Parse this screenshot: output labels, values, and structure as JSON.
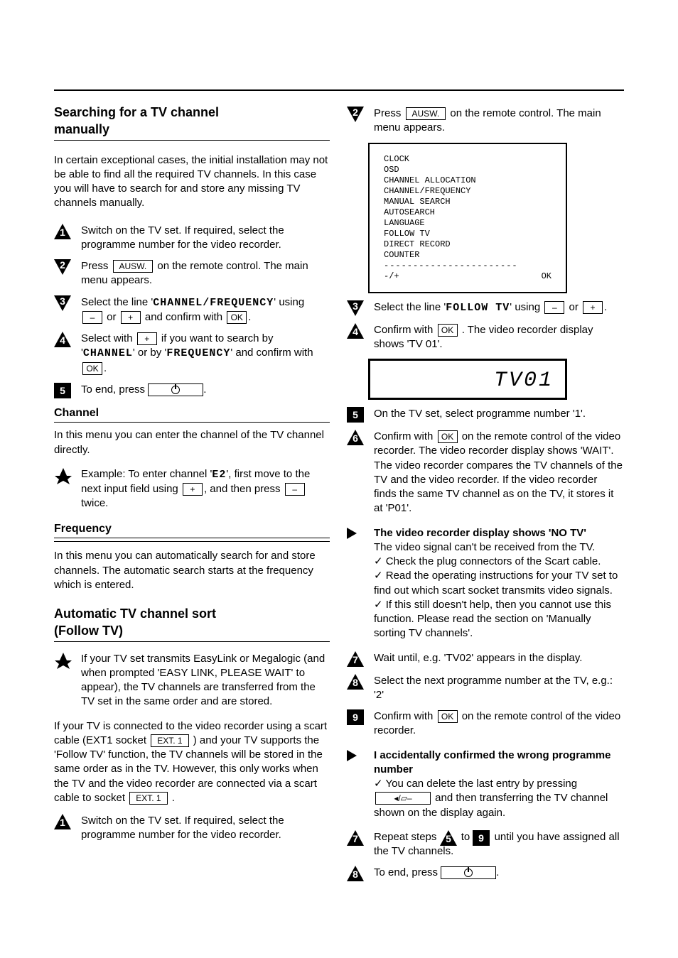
{
  "left": {
    "h1_a": "Searching for a TV channel",
    "h1_b": "manually",
    "p1a": "In certain exceptional cases, the initial installation may not be able to find all the required TV channels. In this case you will have to search for and store any missing TV channels manually.",
    "s1": "Switch on the TV set. If required, select the programme number for the video recorder.",
    "s2": "Press",
    "s2b": "on the remote control. The main menu appears.",
    "s3a": "Select the line '",
    "s3chan": "CHANNEL/FREQUENCY",
    "s3b": "' using",
    "s3c": "or",
    "s3d": "and confirm with",
    "s4a": "Select with",
    "s4b": "if you want to search by '",
    "s4chan": "CHANNEL",
    "s4c": "' or by '",
    "s4freq": "FREQUENCY",
    "s4d": "' and confirm with",
    "s5a": "To end, press",
    "h2": "Channel",
    "p2": "In this menu you can enter the channel of the TV channel directly.",
    "ex1": "Example: To enter channel '",
    "ex2": "E2",
    "ex3": "', first move to the next input field using",
    "ex4": ", and then press",
    "ex5": "twice.",
    "h3": "Frequency",
    "p3": "In this menu you can automatically search for and store channels. The automatic search starts at the frequency which is entered.",
    "h4": "Automatic TV channel sort",
    "h5": "(Follow TV)",
    "tip1": "If your TV set transmits EasyLink or Megalogic (and when prompted 'EASY LINK, PLEASE WAIT' to appear), the TV channels are transferred from the TV set in the same order and are stored.",
    "p4a": "If your TV is connected to the video recorder using a scart cable (EXT1 socket",
    "p4b": ") and your TV supports the 'Follow TV' function, the TV channels will be stored in the same order as in the TV. However, this only works when the TV and the video recorder are connected via a scart cable to socket",
    "p4c": ".",
    "r1": "Switch on the TV set. If required, select the programme number for the video recorder."
  },
  "right": {
    "r2a": "Press",
    "r2b": "on the remote control. The main menu appears.",
    "menu": [
      "CLOCK",
      "OSD",
      "CHANNEL ALLOCATION",
      "CHANNEL/FREQUENCY",
      "MANUAL SEARCH",
      "AUTOSEARCH",
      "LANGUAGE",
      "FOLLOW TV",
      "DIRECT RECORD",
      "COUNTER"
    ],
    "menufoot_l": "-/+",
    "menufoot_r": "OK",
    "r3a": "Select the line '",
    "r3b": "FOLLOW TV",
    "r3c": "' using",
    "r3d": "or",
    "r4a": "Confirm with",
    "r4b": ". The video recorder display shows 'TV 01'.",
    "lcd": "TV01",
    "r5": "On the TV set, select programme number '1'.",
    "r6a": "Confirm with",
    "r6b": "on the remote control of the video recorder. The video recorder display shows 'WAIT'. The video recorder compares the TV channels of the TV and the video recorder. If the video recorder finds the same TV channel as on the TV, it stores it at 'P01'.",
    "x1a": "The video recorder display shows 'NO TV'",
    "x1b": "The video signal can't be received from the TV.",
    "x1c": "Check the plug connectors of the Scart cable.",
    "x1d": "Read the operating instructions for your TV set to find out which scart socket transmits video signals.",
    "x1e": "If this still doesn't help, then you cannot use this function. Please read the section on 'Manually sorting TV channels'.",
    "r7": "Wait until, e.g. 'TV02' appears in the display.",
    "r8": "Select the next programme number at the TV, e.g.: '2'",
    "r9a": "Confirm with",
    "r9b": "on the remote control of the video recorder.",
    "x2a": "I accidentally confirmed the wrong programme number",
    "x2b": "You can delete the last entry by pressing",
    "x2c": "and then transferring the TV channel shown on the display again.",
    "r10a": "Repeat steps",
    "r10b": "to",
    "r10c": "until you have assigned all the TV channels.",
    "r11a": "To end, press"
  },
  "btn": {
    "ausw": "AUSW.",
    "plus": "+",
    "minus": "–",
    "ok": "OK",
    "ext1a": "EXT. 1",
    "ext1b": "EXT. 1",
    "clear": "◂/▱–"
  }
}
